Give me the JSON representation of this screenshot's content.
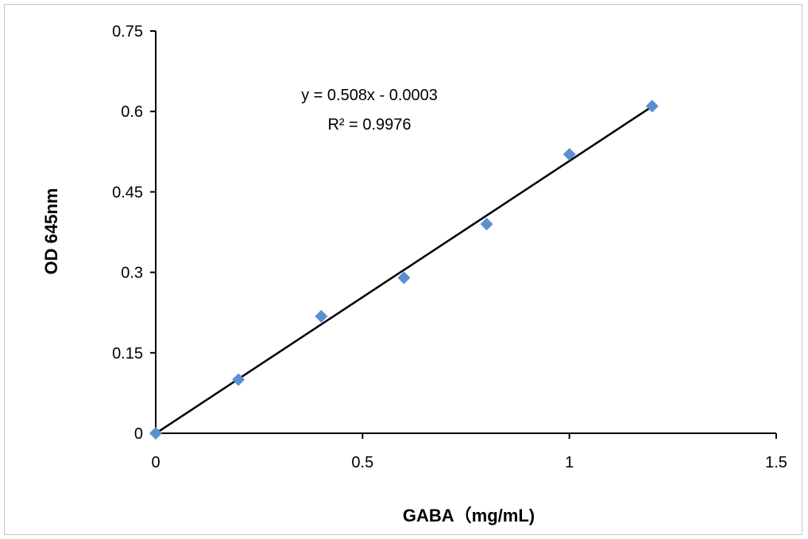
{
  "chart_data": {
    "type": "scatter",
    "xlabel": "GABA（mg/mL)",
    "ylabel": "OD 645nm",
    "xlim": [
      0,
      1.5
    ],
    "ylim": [
      0,
      0.75
    ],
    "x_ticks": [
      "0",
      "0.5",
      "1",
      "1.5"
    ],
    "x_tick_values": [
      0,
      0.5,
      1,
      1.5
    ],
    "y_ticks": [
      "0",
      "0.15",
      "0.3",
      "0.45",
      "0.6",
      "0.75"
    ],
    "y_tick_values": [
      0,
      0.15,
      0.3,
      0.45,
      0.6,
      0.75
    ],
    "grid": false,
    "legend": "none",
    "series": [
      {
        "x": [
          0,
          0.2,
          0.4,
          0.6,
          0.8,
          1.0,
          1.2
        ],
        "y": [
          0.0,
          0.1,
          0.218,
          0.29,
          0.39,
          0.52,
          0.61
        ],
        "marker": "diamond",
        "color": "#5b8fd1"
      }
    ],
    "trendline": {
      "type": "linear",
      "slope": 0.508,
      "intercept": -0.0003,
      "x_range": [
        0,
        1.2
      ],
      "color": "#000000"
    },
    "annotations": {
      "equation": "y = 0.508x - 0.0003",
      "r_squared": "R² = 0.9976"
    }
  }
}
